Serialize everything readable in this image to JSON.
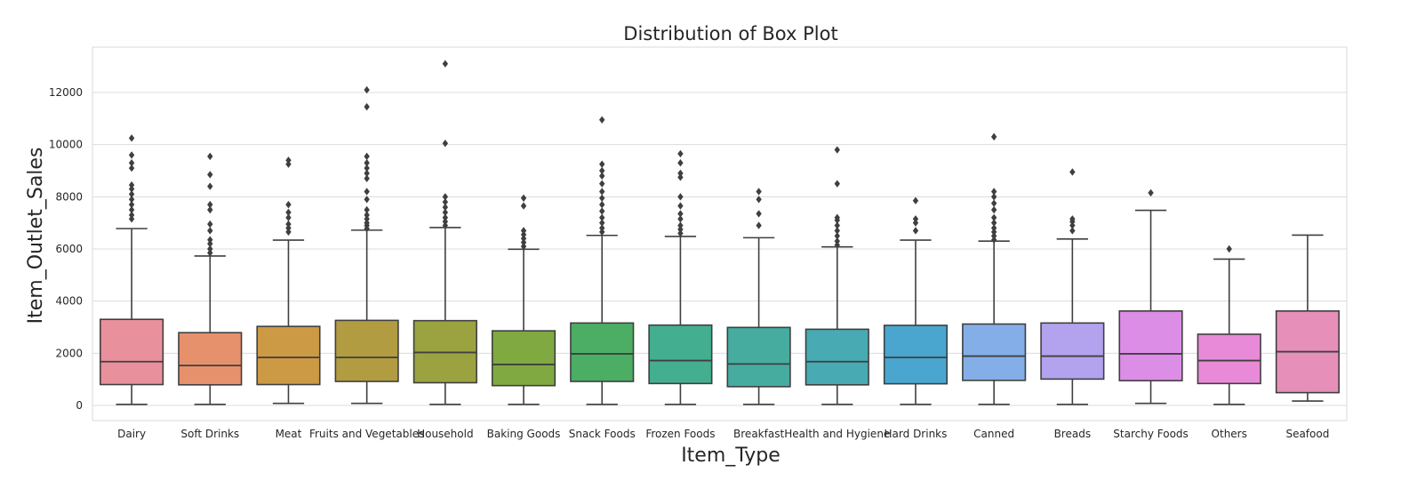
{
  "chart_data": {
    "type": "box",
    "title": "Distribution of Box Plot",
    "xlabel": "Item_Type",
    "ylabel": "Item_Outlet_Sales",
    "ylim": [
      -600,
      13800
    ],
    "yticks": [
      0,
      2000,
      4000,
      6000,
      8000,
      10000,
      12000
    ],
    "grid": true,
    "categories": [
      "Dairy",
      "Soft Drinks",
      "Meat",
      "Fruits and Vegetables",
      "Household",
      "Baking Goods",
      "Snack Foods",
      "Frozen Foods",
      "Breakfast",
      "Health and Hygiene",
      "Hard Drinks",
      "Canned",
      "Breads",
      "Starchy Foods",
      "Others",
      "Seafood"
    ],
    "series": [
      {
        "category": "Dairy",
        "color": "#e8919c",
        "whisker_low": 40,
        "q1": 800,
        "median": 1680,
        "q3": 3300,
        "whisker_high": 6780,
        "outliers": [
          7150,
          7300,
          7500,
          7700,
          7900,
          8100,
          8300,
          8450,
          9100,
          9300,
          9600,
          10250
        ]
      },
      {
        "category": "Soft Drinks",
        "color": "#e7906c",
        "whisker_low": 40,
        "q1": 790,
        "median": 1530,
        "q3": 2790,
        "whisker_high": 5730,
        "outliers": [
          5850,
          6000,
          6200,
          6350,
          6700,
          6950,
          7500,
          7700,
          8400,
          8850,
          9550
        ]
      },
      {
        "category": "Meat",
        "color": "#cc9945",
        "whisker_low": 80,
        "q1": 800,
        "median": 1840,
        "q3": 3030,
        "whisker_high": 6340,
        "outliers": [
          6650,
          6800,
          6950,
          7200,
          7400,
          7700,
          9250,
          9400
        ]
      },
      {
        "category": "Fruits and Vegetables",
        "color": "#b19c42",
        "whisker_low": 80,
        "q1": 920,
        "median": 1840,
        "q3": 3260,
        "whisker_high": 6720,
        "outliers": [
          6780,
          6900,
          7000,
          7150,
          7300,
          7500,
          7900,
          8200,
          8700,
          8900,
          9100,
          9300,
          9550,
          11450,
          12100
        ]
      },
      {
        "category": "Household",
        "color": "#9ba341",
        "whisker_low": 40,
        "q1": 870,
        "median": 2030,
        "q3": 3250,
        "whisker_high": 6820,
        "outliers": [
          6900,
          7050,
          7200,
          7400,
          7600,
          7800,
          8000,
          10050,
          13100
        ]
      },
      {
        "category": "Baking Goods",
        "color": "#80a942",
        "whisker_low": 40,
        "q1": 760,
        "median": 1570,
        "q3": 2860,
        "whisker_high": 5990,
        "outliers": [
          6100,
          6250,
          6400,
          6550,
          6700,
          7650,
          7950
        ]
      },
      {
        "category": "Snack Foods",
        "color": "#4bae64",
        "whisker_low": 40,
        "q1": 920,
        "median": 1980,
        "q3": 3160,
        "whisker_high": 6520,
        "outliers": [
          6650,
          6800,
          7000,
          7200,
          7450,
          7700,
          7950,
          8200,
          8500,
          8800,
          9000,
          9250,
          10950
        ]
      },
      {
        "category": "Frozen Foods",
        "color": "#43ae90",
        "whisker_low": 40,
        "q1": 840,
        "median": 1720,
        "q3": 3080,
        "whisker_high": 6480,
        "outliers": [
          6600,
          6750,
          6900,
          7150,
          7350,
          7650,
          8000,
          8750,
          8900,
          9300,
          9650
        ]
      },
      {
        "category": "Breakfast",
        "color": "#46aca0",
        "whisker_low": 40,
        "q1": 720,
        "median": 1590,
        "q3": 2990,
        "whisker_high": 6430,
        "outliers": [
          6900,
          7350,
          7900,
          8200
        ]
      },
      {
        "category": "Health and Hygiene",
        "color": "#48aab2",
        "whisker_low": 40,
        "q1": 790,
        "median": 1680,
        "q3": 2920,
        "whisker_high": 6080,
        "outliers": [
          6150,
          6300,
          6500,
          6700,
          6900,
          7100,
          7200,
          8500,
          9800
        ]
      },
      {
        "category": "Hard Drinks",
        "color": "#4aa6ce",
        "whisker_low": 40,
        "q1": 830,
        "median": 1840,
        "q3": 3070,
        "whisker_high": 6340,
        "outliers": [
          6700,
          7000,
          7150,
          7850
        ]
      },
      {
        "category": "Canned",
        "color": "#84aee8",
        "whisker_low": 40,
        "q1": 960,
        "median": 1890,
        "q3": 3120,
        "whisker_high": 6300,
        "outliers": [
          6350,
          6500,
          6650,
          6800,
          7000,
          7200,
          7500,
          7750,
          8000,
          8200,
          10300
        ]
      },
      {
        "category": "Breads",
        "color": "#b3a2ee",
        "whisker_low": 40,
        "q1": 1010,
        "median": 1890,
        "q3": 3160,
        "whisker_high": 6380,
        "outliers": [
          6700,
          6900,
          7050,
          7150,
          8950
        ]
      },
      {
        "category": "Starchy Foods",
        "color": "#dc8de6",
        "whisker_low": 80,
        "q1": 950,
        "median": 1980,
        "q3": 3620,
        "whisker_high": 7480,
        "outliers": [
          8150
        ]
      },
      {
        "category": "Others",
        "color": "#e88ad8",
        "whisker_low": 40,
        "q1": 840,
        "median": 1720,
        "q3": 2730,
        "whisker_high": 5610,
        "outliers": [
          6000
        ]
      },
      {
        "category": "Seafood",
        "color": "#e68fb9",
        "whisker_low": 170,
        "q1": 490,
        "median": 2060,
        "q3": 3620,
        "whisker_high": 6530,
        "outliers": []
      }
    ]
  }
}
